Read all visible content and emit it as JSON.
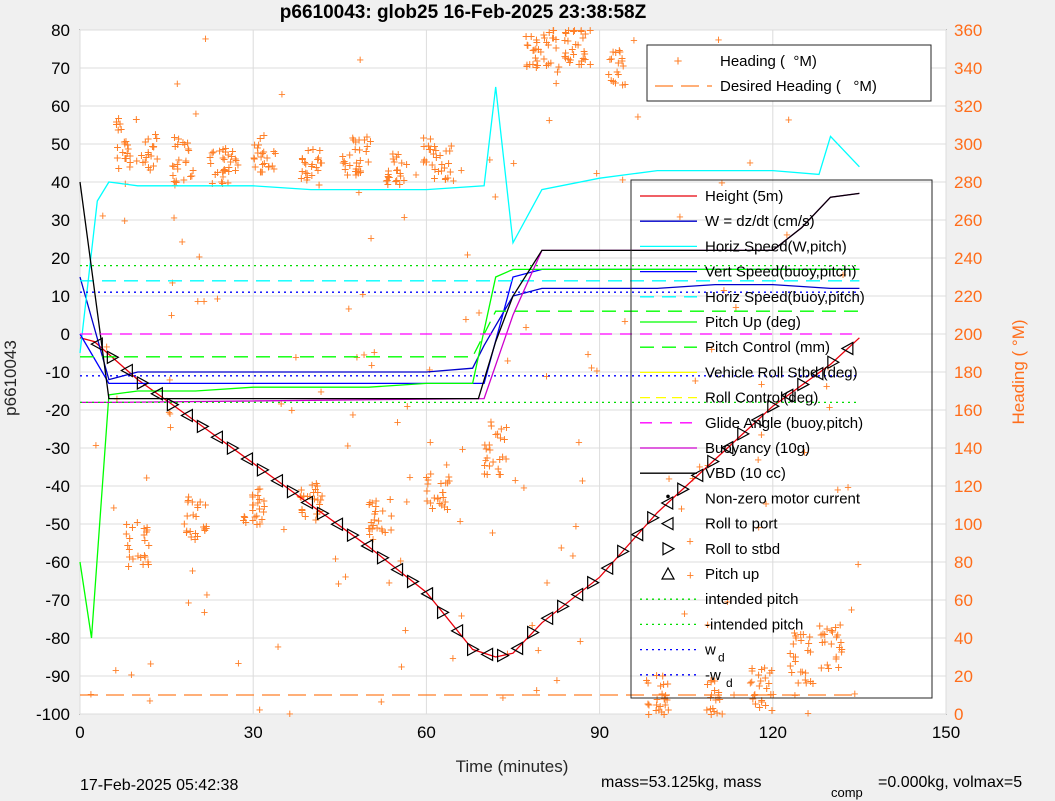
{
  "chart_data": {
    "type": "line",
    "title": "p6610043: glob25 16-Feb-2025 23:38:58Z",
    "xlabel": "Time (minutes)",
    "ylabel": "p6610043",
    "y2label": "Heading ( °M)",
    "xlim": [
      0,
      150
    ],
    "ylim": [
      -100,
      80
    ],
    "y2lim": [
      0,
      360
    ],
    "xticks": [
      "0",
      "30",
      "60",
      "90",
      "120",
      "150"
    ],
    "yticks": [
      "80",
      "70",
      "60",
      "50",
      "40",
      "30",
      "20",
      "10",
      "0",
      "-10",
      "-20",
      "-30",
      "-40",
      "-50",
      "-60",
      "-70",
      "-80",
      "-90",
      "-100"
    ],
    "y2ticks": [
      "360",
      "340",
      "320",
      "300",
      "280",
      "260",
      "240",
      "220",
      "200",
      "180",
      "160",
      "140",
      "120",
      "100",
      "80",
      "60",
      "40",
      "20",
      "0"
    ],
    "grid": true,
    "legend_heading": [
      "Heading (  °M)",
      "Desired Heading (   °M)"
    ],
    "legend_main": [
      "Height (5m)",
      "W = dz/dt (cm/s)",
      "Horiz Speed(W,pitch)",
      "Vert Speed(buoy,pitch)",
      "Horiz Speed(buoy,pitch)",
      "Pitch Up (deg)",
      "Pitch Control (mm)",
      "Vehicle Roll Stbd (deg)",
      "Roll Control(deg)",
      "Glide Angle (buoy,pitch)",
      "Buoyancy (10g)",
      "VBD (10 cc)",
      "Non-zero motor current",
      "Roll to port",
      "Roll to stbd",
      "Pitch up",
      "intended pitch",
      "-intended pitch",
      "w",
      "-w"
    ],
    "legend_w_subscript": "d",
    "series": [
      {
        "name": "Height (5m)",
        "color": "#e8000b",
        "x": [
          0,
          2.5,
          10,
          20,
          30,
          40,
          50,
          60,
          68,
          72,
          75,
          80,
          90,
          100,
          110,
          120,
          130,
          135
        ],
        "y": [
          -1,
          -2,
          -12,
          -23,
          -34,
          -45,
          -56,
          -68,
          -83,
          -85,
          -84,
          -76,
          -64,
          -47,
          -33,
          -19,
          -8,
          -1
        ]
      },
      {
        "name": "W = dz/dt (cm/s)",
        "color": "#0000cc",
        "x": [
          0,
          5,
          10,
          20,
          30,
          40,
          50,
          60,
          68,
          70,
          75,
          80,
          90,
          100,
          110,
          120,
          130,
          135
        ],
        "y": [
          15,
          -12,
          -10,
          -10,
          -10,
          -10,
          -10,
          -10,
          -9,
          -3,
          10,
          12,
          12,
          12,
          13,
          13,
          12,
          12
        ]
      },
      {
        "name": "Horiz Speed(W,pitch)",
        "color": "#00ffff",
        "x": [
          0,
          3,
          5,
          10,
          20,
          30,
          40,
          50,
          60,
          70,
          72,
          75,
          80,
          90,
          100,
          110,
          120,
          128,
          130,
          135
        ],
        "y": [
          -5,
          35,
          40,
          39,
          39,
          39,
          38,
          38,
          38,
          39,
          65,
          24,
          38,
          41,
          43,
          43,
          43,
          42,
          52,
          44
        ]
      },
      {
        "name": "Vert Speed(buoy,pitch)",
        "color": "#0000ff",
        "x": [
          0,
          5,
          70,
          75,
          80,
          135
        ],
        "y": [
          0,
          -13,
          -13,
          15,
          17,
          17
        ]
      },
      {
        "name": "Horiz Speed(buoy,pitch)",
        "color": "#00ffff",
        "x": [
          0,
          135
        ],
        "y": [
          14,
          14
        ]
      },
      {
        "name": "Pitch Up (deg)",
        "color": "#00ff00",
        "x": [
          0,
          2,
          5,
          10,
          20,
          30,
          40,
          50,
          60,
          68,
          72,
          75,
          80,
          90,
          100,
          110,
          120,
          130,
          135
        ],
        "y": [
          -60,
          -80,
          -16,
          -15,
          -15,
          -14,
          -14,
          -14,
          -13,
          -13,
          15,
          17,
          17,
          17,
          17,
          17,
          17,
          17,
          17
        ]
      },
      {
        "name": "Pitch Control (mm)",
        "color": "#00ff00",
        "x": [
          0,
          68,
          72,
          135
        ],
        "y": [
          -6,
          -6,
          6,
          6
        ]
      },
      {
        "name": "Buoyancy (10g)",
        "color": "#cc00cc",
        "x": [
          0,
          5,
          70,
          75,
          80,
          120,
          125,
          130,
          135
        ],
        "y": [
          -18,
          -18,
          -17,
          5,
          22,
          22,
          28,
          36,
          37
        ]
      },
      {
        "name": "VBD (10 cc)",
        "color": "#000000",
        "x": [
          0,
          5,
          69,
          72,
          75,
          80,
          120,
          125,
          130,
          135
        ],
        "y": [
          40,
          -17,
          -17,
          -2,
          10,
          22,
          22,
          28,
          36,
          37
        ]
      },
      {
        "name": "Glide Angle (buoy,pitch)",
        "color": "#ff00ff",
        "x": [
          0,
          135
        ],
        "y": [
          0,
          0
        ]
      },
      {
        "name": "intended pitch",
        "color": "#00dd00",
        "x": [
          0,
          135
        ],
        "y": [
          18,
          18
        ]
      },
      {
        "name": "-intended pitch",
        "color": "#00dd00",
        "x": [
          0,
          135
        ],
        "y": [
          -18,
          -18
        ]
      },
      {
        "name": "w",
        "color": "#0000ff",
        "x": [
          0,
          135
        ],
        "y": [
          11,
          11
        ]
      },
      {
        "name": "-w",
        "color": "#0000ff",
        "x": [
          0,
          135
        ],
        "y": [
          -11,
          -11
        ]
      },
      {
        "name": "Desired Heading (   °M)",
        "color": "#ff7f27",
        "axis": "right",
        "x": [
          0,
          135
        ],
        "y": [
          10,
          10
        ]
      }
    ],
    "heading_axis": "right"
  },
  "footer": {
    "timestamp": "17-Feb-2025 05:42:38",
    "mass_prefix": "mass=53.125kg, mass",
    "mass_subscript": "comp",
    "mass_suffix": "=0.000kg, volmax=5"
  }
}
